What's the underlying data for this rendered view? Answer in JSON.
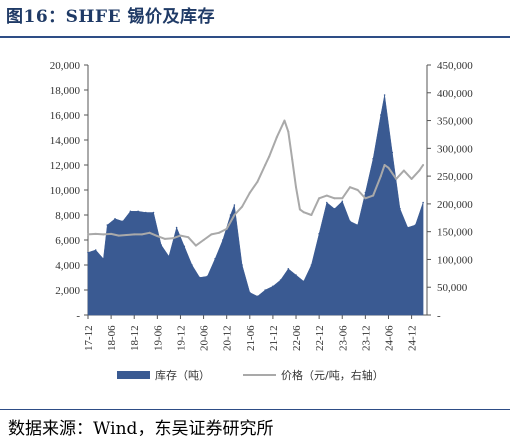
{
  "title": "图16：SHFE 锡价及库存",
  "source": "数据来源：Wind，东吴证券研究所",
  "chart_data": {
    "type": "area",
    "x_tick_labels": [
      "17-12",
      "18-06",
      "18-12",
      "19-06",
      "19-12",
      "20-06",
      "20-12",
      "21-06",
      "21-12",
      "22-06",
      "22-12",
      "23-06",
      "23-12",
      "24-06",
      "24-12"
    ],
    "x_range": [
      "2017-12",
      "2025-04"
    ],
    "y_left": {
      "ticks": [
        "-",
        "2,000",
        "4,000",
        "6,000",
        "8,000",
        "10,000",
        "12,000",
        "14,000",
        "16,000",
        "18,000",
        "20,000"
      ],
      "range": [
        0,
        20000
      ]
    },
    "y_right": {
      "ticks": [
        "-",
        "50,000",
        "100,000",
        "150,000",
        "200,000",
        "250,000",
        "300,000",
        "350,000",
        "400,000",
        "450,000"
      ],
      "range": [
        0,
        450000
      ]
    },
    "grid": false,
    "legend_position": "bottom",
    "series": [
      {
        "name": "库存（吨）",
        "kind": "area",
        "axis": "left",
        "color": "#3a5a92",
        "x": [
          "2017-12",
          "2018-02",
          "2018-04",
          "2018-05",
          "2018-07",
          "2018-09",
          "2018-11",
          "2019-01",
          "2019-03",
          "2019-05",
          "2019-07",
          "2019-09",
          "2019-11",
          "2020-01",
          "2020-03",
          "2020-05",
          "2020-07",
          "2020-09",
          "2020-11",
          "2021-01",
          "2021-02",
          "2021-04",
          "2021-06",
          "2021-08",
          "2021-10",
          "2021-12",
          "2022-02",
          "2022-04",
          "2022-06",
          "2022-08",
          "2022-10",
          "2022-12",
          "2023-02",
          "2023-04",
          "2023-06",
          "2023-08",
          "2023-10",
          "2023-12",
          "2024-02",
          "2024-04",
          "2024-05",
          "2024-07",
          "2024-09",
          "2024-11",
          "2025-01",
          "2025-03"
        ],
        "values": [
          5000,
          5200,
          4500,
          7200,
          7700,
          7500,
          8300,
          8300,
          8200,
          8200,
          5600,
          4700,
          7000,
          5500,
          4000,
          3000,
          3100,
          4500,
          6000,
          8000,
          8800,
          4000,
          1800,
          1500,
          2000,
          2300,
          2800,
          3700,
          3200,
          2700,
          4000,
          6500,
          9000,
          8500,
          9100,
          7500,
          7200,
          9800,
          12500,
          16000,
          17600,
          13000,
          8500,
          7000,
          7200,
          9000
        ]
      },
      {
        "name": "价格（元/吨，右轴）",
        "kind": "line",
        "axis": "right",
        "color": "#a9a9a9",
        "x": [
          "2017-12",
          "2018-02",
          "2018-04",
          "2018-06",
          "2018-08",
          "2018-10",
          "2018-12",
          "2019-02",
          "2019-04",
          "2019-06",
          "2019-08",
          "2019-10",
          "2019-12",
          "2020-02",
          "2020-04",
          "2020-06",
          "2020-08",
          "2020-10",
          "2020-12",
          "2021-02",
          "2021-04",
          "2021-06",
          "2021-08",
          "2021-10",
          "2021-11",
          "2022-01",
          "2022-03",
          "2022-04",
          "2022-05",
          "2022-06",
          "2022-07",
          "2022-08",
          "2022-10",
          "2022-12",
          "2023-02",
          "2023-04",
          "2023-06",
          "2023-08",
          "2023-10",
          "2023-12",
          "2024-02",
          "2024-04",
          "2024-05",
          "2024-06",
          "2024-08",
          "2024-10",
          "2024-12",
          "2025-02",
          "2025-03"
        ],
        "values": [
          145000,
          146000,
          145000,
          146000,
          143000,
          144000,
          145000,
          145000,
          148000,
          142000,
          137000,
          138000,
          143000,
          140000,
          125000,
          135000,
          145000,
          148000,
          155000,
          180000,
          195000,
          220000,
          240000,
          270000,
          285000,
          320000,
          350000,
          330000,
          280000,
          230000,
          190000,
          185000,
          180000,
          210000,
          215000,
          210000,
          210000,
          230000,
          225000,
          210000,
          215000,
          250000,
          270000,
          265000,
          245000,
          260000,
          245000,
          260000,
          270000
        ]
      }
    ]
  }
}
